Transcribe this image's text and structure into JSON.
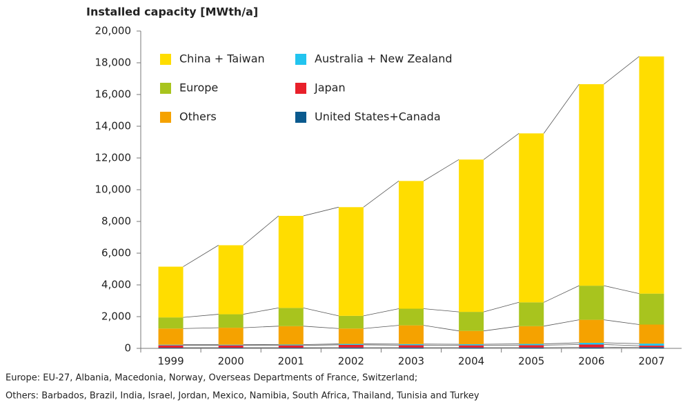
{
  "chart_data": {
    "type": "stacked_bar",
    "y_axis_label": "Installed capacity [MWth/a]",
    "categories": [
      "1999",
      "2000",
      "2001",
      "2002",
      "2003",
      "2004",
      "2005",
      "2006",
      "2007"
    ],
    "series": [
      {
        "name": "United States+Canada",
        "color": "#0a5a8e",
        "values": [
          40,
          40,
          40,
          50,
          50,
          50,
          50,
          60,
          70
        ]
      },
      {
        "name": "Japan",
        "color": "#e8202a",
        "values": [
          150,
          150,
          150,
          170,
          150,
          140,
          150,
          180,
          100
        ]
      },
      {
        "name": "Australia + New Zealand",
        "color": "#22c4ef",
        "values": [
          40,
          40,
          50,
          60,
          70,
          70,
          80,
          110,
          130
        ]
      },
      {
        "name": "Others",
        "color": "#f5a200",
        "values": [
          1020,
          1070,
          1160,
          970,
          1180,
          840,
          1120,
          1450,
          1200
        ]
      },
      {
        "name": "Europe",
        "color": "#a8c41e",
        "values": [
          700,
          850,
          1150,
          800,
          1050,
          1200,
          1500,
          2150,
          1950
        ]
      },
      {
        "name": "China + Taiwan",
        "color": "#ffdd00",
        "values": [
          3200,
          4350,
          5800,
          6850,
          8050,
          9600,
          10650,
          12700,
          14950
        ]
      }
    ],
    "legend_order": [
      5,
      2,
      4,
      1,
      3,
      0
    ],
    "ylim": [
      0,
      20000
    ],
    "yticks": [
      0,
      {
        "value": 2000,
        "label": "2,000"
      },
      {
        "value": 4000,
        "label": "4,000"
      },
      {
        "value": 6000,
        "label": "6,000"
      },
      {
        "value": 8000,
        "label": "8,000"
      },
      {
        "value": 10000,
        "label": "10,000"
      },
      {
        "value": 12000,
        "label": "12,000"
      },
      {
        "value": 14000,
        "label": "14,000"
      },
      {
        "value": 16000,
        "label": "16,000"
      },
      {
        "value": 18000,
        "label": "18,000"
      },
      {
        "value": 20000,
        "label": "20,000"
      }
    ],
    "annotations": [
      "Europe: EU-27, Albania, Macedonia, Norway, Overseas Departments of France, Switzerland;",
      "Others: Barbados, Brazil, India, Israel, Jordan, Mexico, Namibia, South Africa, Thailand, Tunisia and Turkey"
    ]
  }
}
